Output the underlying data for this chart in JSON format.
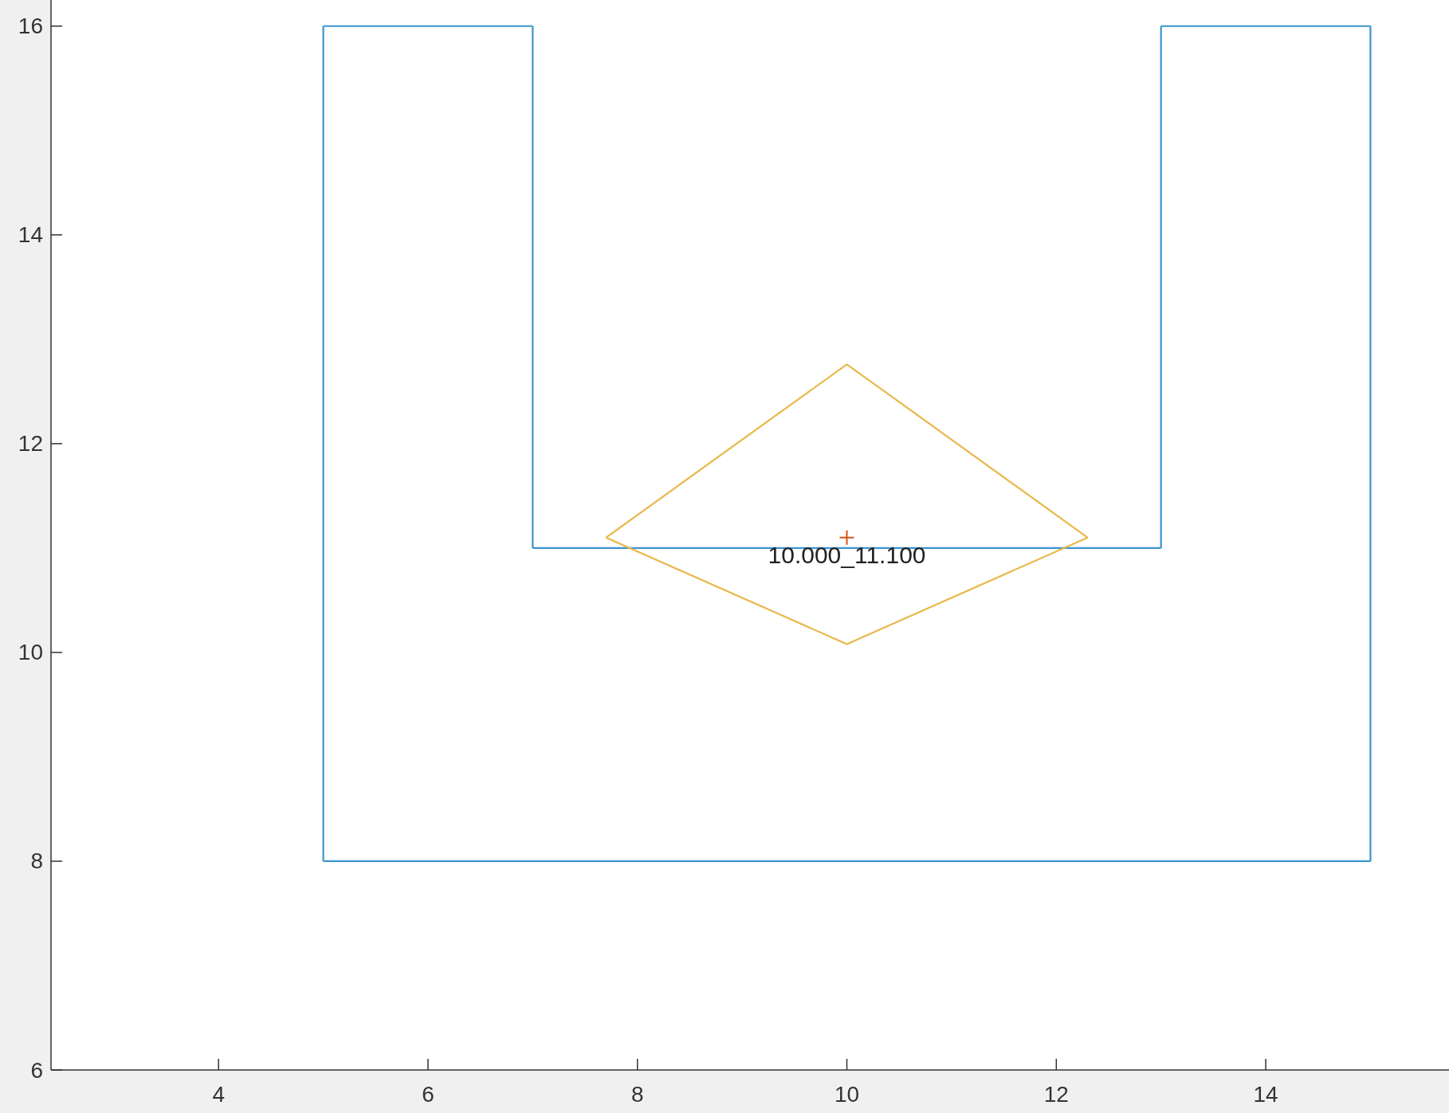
{
  "chart_data": {
    "type": "line",
    "xlim": [
      2.4,
      15.75
    ],
    "ylim": [
      6,
      16.25
    ],
    "xticks": [
      4,
      6,
      8,
      10,
      12,
      14
    ],
    "yticks": [
      6,
      8,
      10,
      12,
      14,
      16
    ],
    "grid": false,
    "marker": "none",
    "line_style": "solid",
    "series": [
      {
        "type": "line",
        "color": "#3c94cf",
        "x": [
          5,
          7
        ],
        "values": [
          16,
          16
        ]
      },
      {
        "type": "line",
        "color": "#3c94cf",
        "x": [
          7,
          7
        ],
        "values": [
          16,
          11
        ]
      },
      {
        "type": "line",
        "color": "#3c94cf",
        "x": [
          7,
          13
        ],
        "values": [
          11,
          11
        ]
      },
      {
        "type": "line",
        "color": "#3c94cf",
        "x": [
          13,
          13
        ],
        "values": [
          11,
          16
        ]
      },
      {
        "type": "line",
        "color": "#3c94cf",
        "x": [
          13,
          15
        ],
        "values": [
          16,
          16
        ]
      },
      {
        "type": "line",
        "color": "#3c94cf",
        "x": [
          15,
          15
        ],
        "values": [
          16,
          8
        ]
      },
      {
        "type": "line",
        "color": "#3c94cf",
        "x": [
          5,
          15
        ],
        "values": [
          8,
          8
        ]
      },
      {
        "type": "line",
        "color": "#3c94cf",
        "x": [
          5,
          5
        ],
        "values": [
          8,
          16
        ]
      },
      {
        "type": "line",
        "color": "#e8b84a",
        "x": [
          7.7,
          10,
          12.3
        ],
        "values": [
          11.1,
          12.76,
          11.1
        ]
      },
      {
        "type": "line",
        "color": "#e8b84a",
        "x": [
          7.7,
          10,
          12.3
        ],
        "values": [
          11.1,
          10.08,
          11.1
        ]
      },
      {
        "type": "scatter",
        "color": "#d9541a",
        "marker": "cross",
        "x": [
          10
        ],
        "values": [
          11.1
        ]
      }
    ],
    "annotations": [
      {
        "text": "10.000_11.100",
        "x": 10,
        "y": 11.1
      }
    ]
  }
}
